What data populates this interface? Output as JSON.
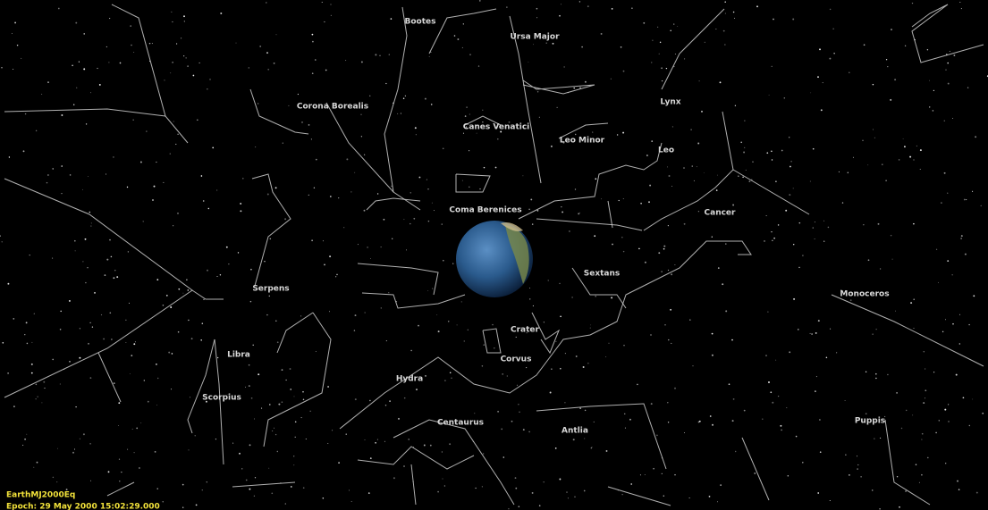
{
  "constellations": [
    "Bootes",
    "Ursa Major",
    "Corona Borealis",
    "Canes Venatici",
    "Leo Minor",
    "Lynx",
    "Leo",
    "Coma Berenices",
    "Cancer",
    "Sextans",
    "Serpens",
    "Monoceros",
    "Crater",
    "Corvus",
    "Libra",
    "Hydra",
    "Scorpius",
    "Centaurus",
    "Antlia",
    "Puppis"
  ],
  "status": {
    "coordinate_system": "EarthMJ2000Eq",
    "epoch": "Epoch: 29 May 2000 15:02:29.000"
  }
}
